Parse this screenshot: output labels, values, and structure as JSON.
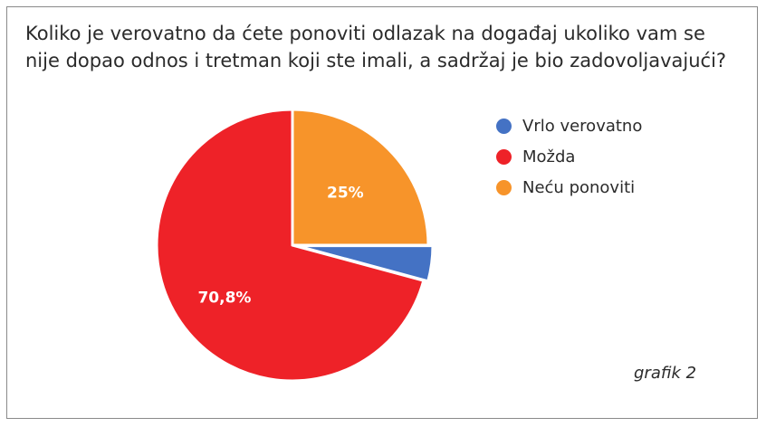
{
  "chart_data": {
    "type": "pie",
    "title_lines": [
      "Koliko je verovatno da ćete ponoviti odlazak na događaj ukoliko vam se",
      "nije dopao odnos i tretman koji ste imali, a sadržaj je bio zadovoljavajući?"
    ],
    "slices": [
      {
        "label": "Vrlo verovatno",
        "value": 4.2,
        "color": "#4472c4",
        "data_label": ""
      },
      {
        "label": "Možda",
        "value": 70.8,
        "color": "#ee2228",
        "data_label": "70,8%"
      },
      {
        "label": "Neću ponoviti",
        "value": 25,
        "color": "#f7942a",
        "data_label": "25%"
      }
    ],
    "legend_position": "right",
    "caption": "grafik 2"
  }
}
